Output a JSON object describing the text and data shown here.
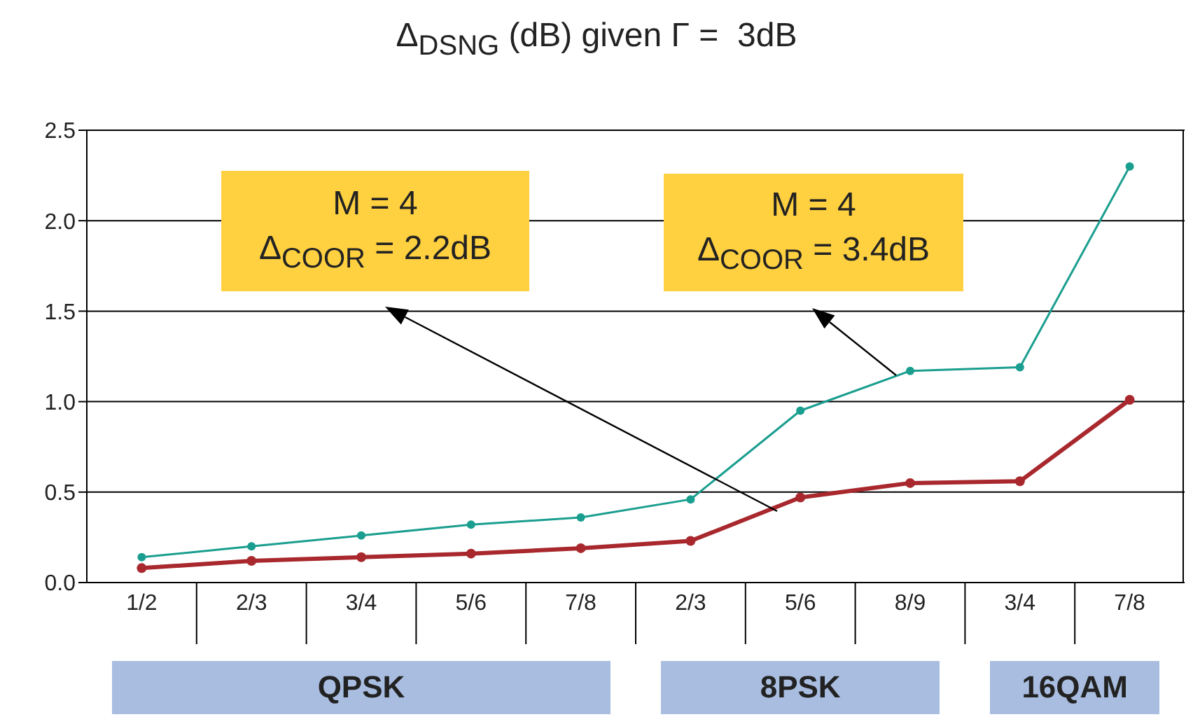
{
  "chart_data": {
    "type": "line",
    "title": "Δ$_{DSNG}$ (dB) given Γ =  3dB",
    "categories": [
      "1/2",
      "2/3",
      "3/4",
      "5/6",
      "7/8",
      "2/3",
      "5/6",
      "8/9",
      "3/4",
      "7/8"
    ],
    "series": [
      {
        "color": "#1a9e8f",
        "values": [
          0.14,
          0.2,
          0.26,
          0.32,
          0.36,
          0.46,
          0.95,
          1.17,
          1.19,
          2.3
        ]
      },
      {
        "color": "#a8282d",
        "values": [
          0.08,
          0.12,
          0.14,
          0.16,
          0.19,
          0.23,
          0.47,
          0.55,
          0.56,
          1.01
        ]
      }
    ],
    "ylim": [
      0,
      2.5
    ],
    "yticks": [
      {
        "value": 0,
        "label": "0.0"
      },
      {
        "value": 0.5,
        "label": "0.5"
      },
      {
        "value": 1,
        "label": "1.0"
      },
      {
        "value": 1.5,
        "label": "1.5"
      },
      {
        "value": 2,
        "label": "2.0"
      },
      {
        "value": 2.5,
        "label": "2.5"
      }
    ],
    "grid": "y",
    "marker": "circle",
    "line_style": "solid",
    "annotations": [
      "M = 4\nΔ$_{COOR}$ = 2.2dB",
      "M = 4\nΔ$_{COOR}$ = 3.4dB",
      "QPSK",
      "8PSK",
      "16QAM"
    ]
  }
}
